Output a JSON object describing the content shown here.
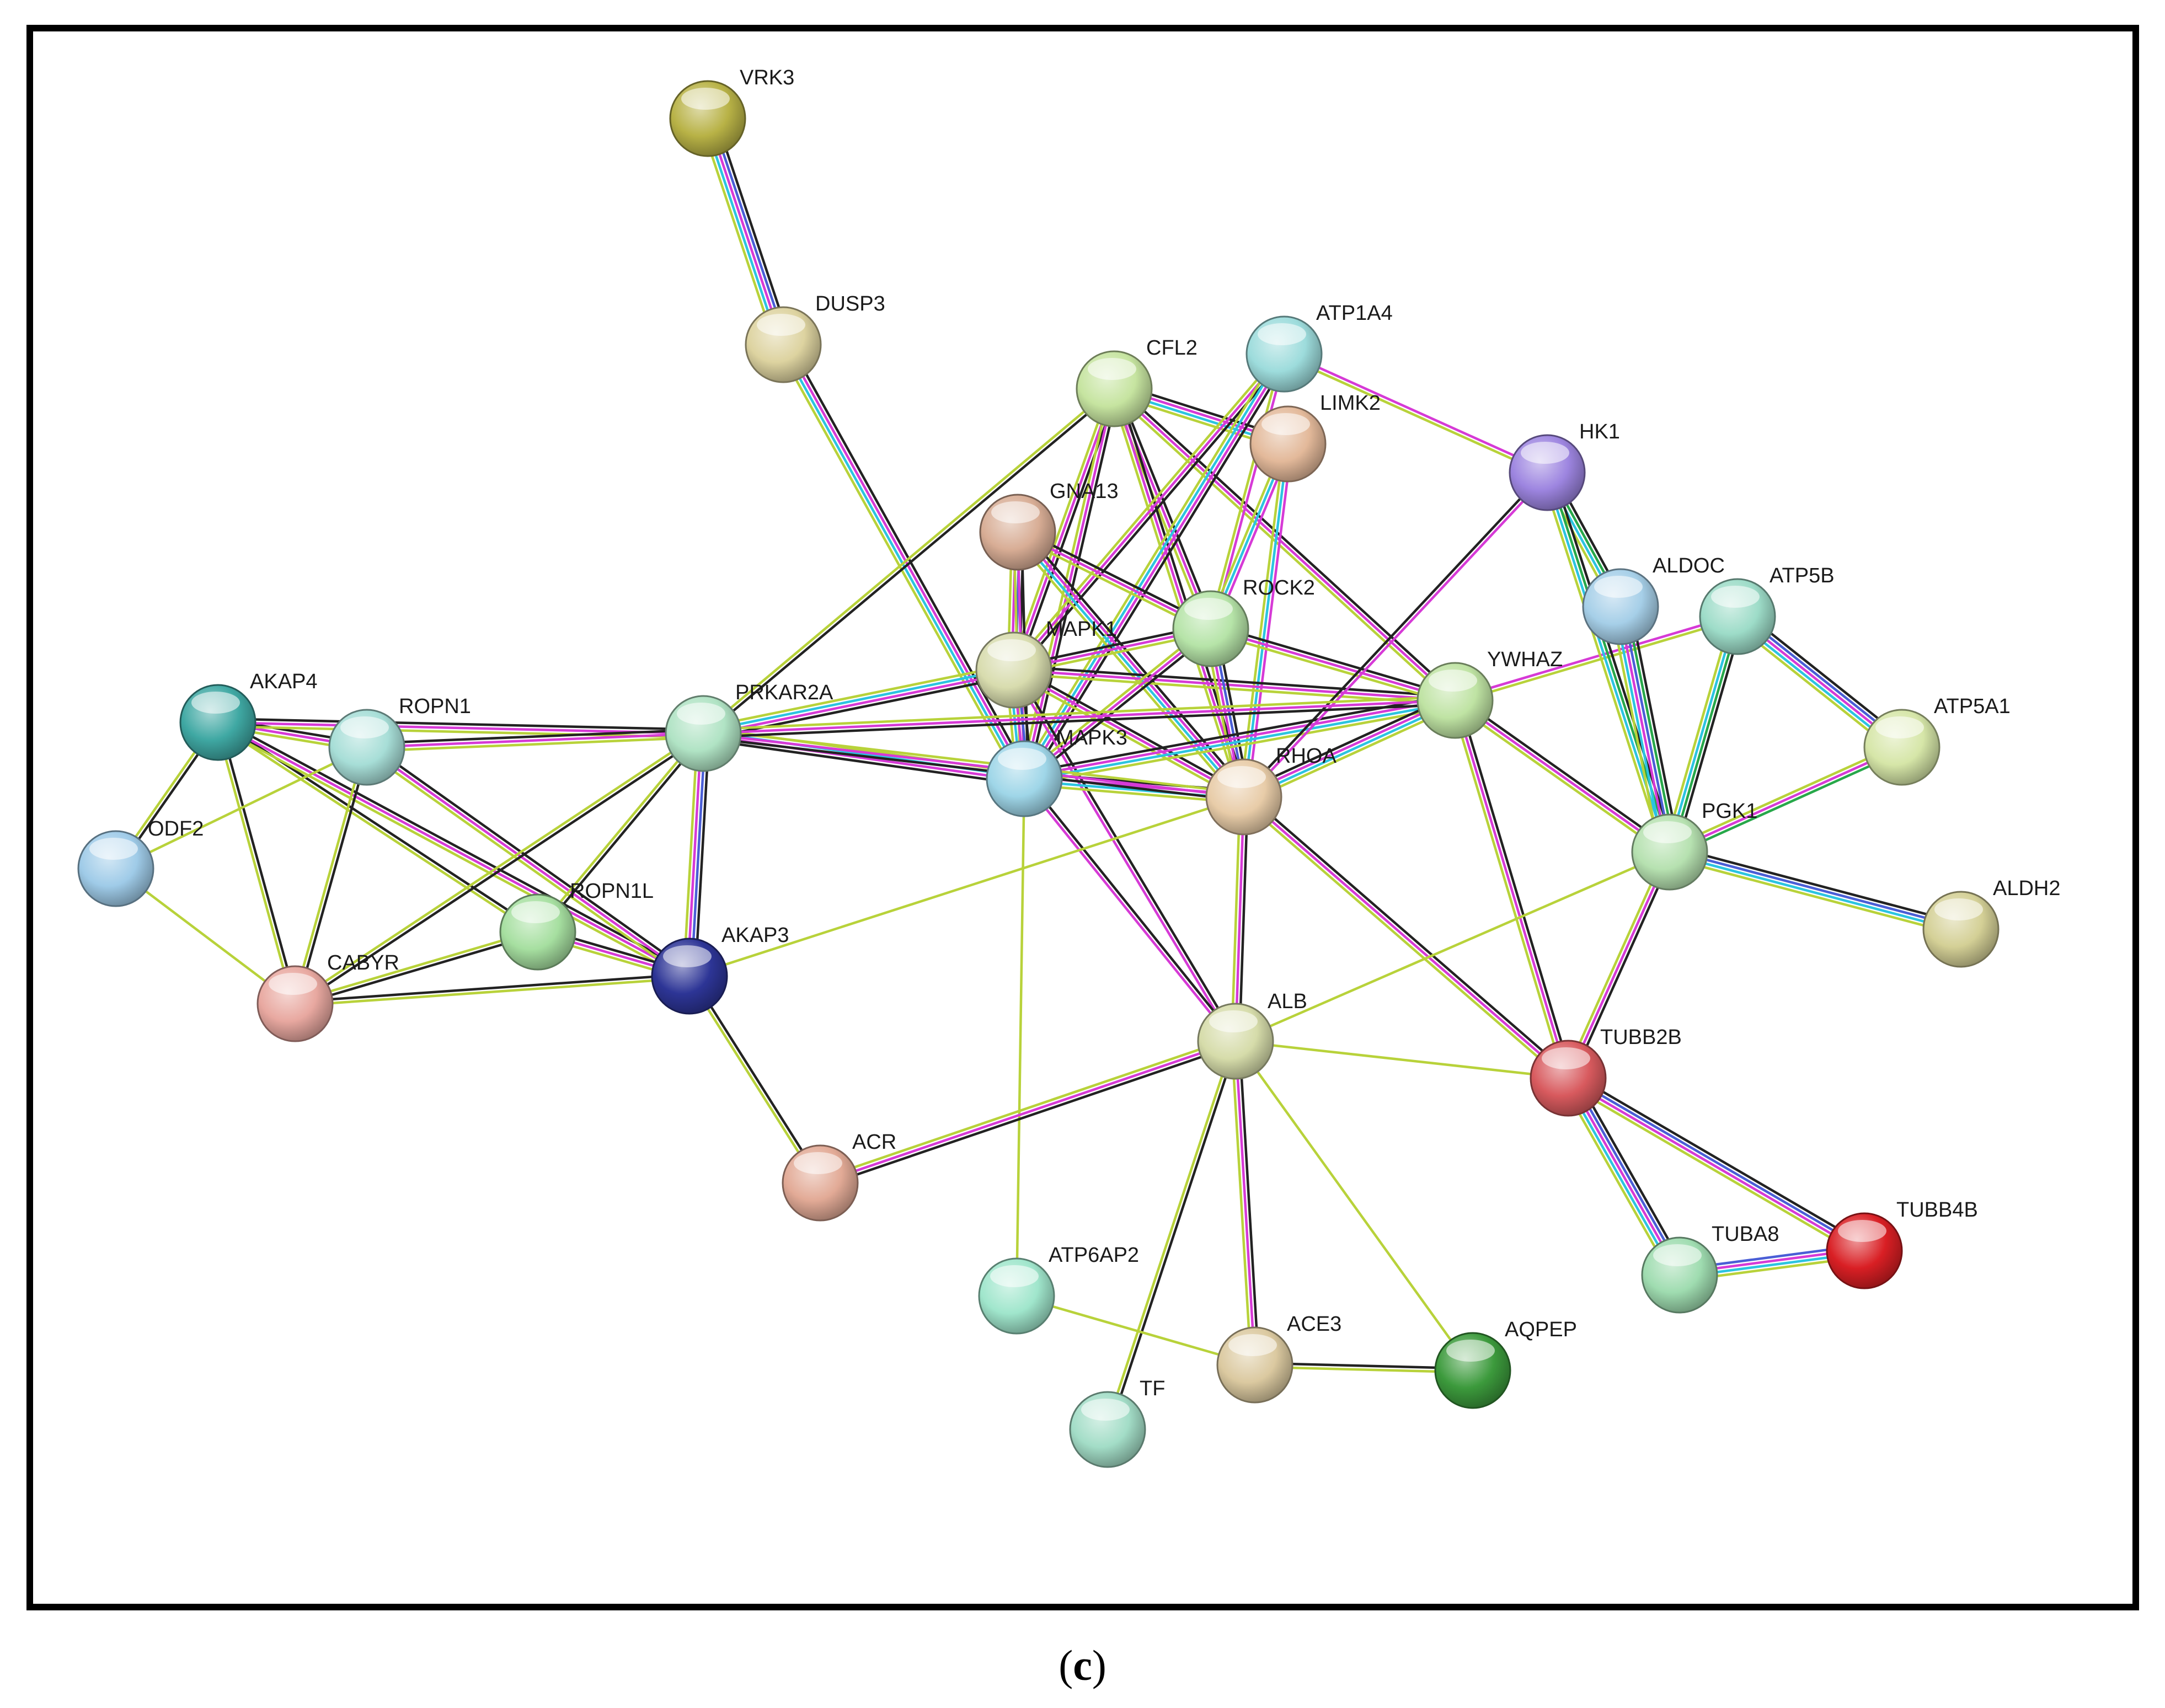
{
  "caption": {
    "open": "(",
    "letter": "c",
    "close": ")"
  },
  "nodes": [
    {
      "id": "VRK3",
      "label": "VRK3",
      "color": "#b8b246"
    },
    {
      "id": "DUSP3",
      "label": "DUSP3",
      "color": "#ddd3a0"
    },
    {
      "id": "ATP1A4",
      "label": "ATP1A4",
      "color": "#9ddcdc"
    },
    {
      "id": "CFL2",
      "label": "CFL2",
      "color": "#c6e4a0"
    },
    {
      "id": "LIMK2",
      "label": "LIMK2",
      "color": "#e3b99a"
    },
    {
      "id": "HK1",
      "label": "HK1",
      "color": "#9d85e0"
    },
    {
      "id": "GNA13",
      "label": "GNA13",
      "color": "#d8ad95"
    },
    {
      "id": "ROCK2",
      "label": "ROCK2",
      "color": "#b6e4a8"
    },
    {
      "id": "MAPK1",
      "label": "MAPK1",
      "color": "#d8dcae"
    },
    {
      "id": "ALDOC",
      "label": "ALDOC",
      "color": "#a6cfe8"
    },
    {
      "id": "ATP5B",
      "label": "ATP5B",
      "color": "#9ddcc8"
    },
    {
      "id": "YWHAZ",
      "label": "YWHAZ",
      "color": "#bfe3a3"
    },
    {
      "id": "ATP5A1",
      "label": "ATP5A1",
      "color": "#d6e6a8"
    },
    {
      "id": "AKAP4",
      "label": "AKAP4",
      "color": "#3fa8a3"
    },
    {
      "id": "ROPN1",
      "label": "ROPN1",
      "color": "#a7ded7"
    },
    {
      "id": "PRKAR2A",
      "label": "PRKAR2A",
      "color": "#b0e3c4"
    },
    {
      "id": "MAPK3",
      "label": "MAPK3",
      "color": "#9fd6e8"
    },
    {
      "id": "RHOA",
      "label": "RHOA",
      "color": "#e8cca8"
    },
    {
      "id": "PGK1",
      "label": "PGK1",
      "color": "#b6e1b0"
    },
    {
      "id": "ODF2",
      "label": "ODF2",
      "color": "#9fcbe8"
    },
    {
      "id": "ALDH2",
      "label": "ALDH2",
      "color": "#d4d096"
    },
    {
      "id": "ROPN1L",
      "label": "ROPN1L",
      "color": "#a6dfa0"
    },
    {
      "id": "AKAP3",
      "label": "AKAP3",
      "color": "#2d3596"
    },
    {
      "id": "CABYR",
      "label": "CABYR",
      "color": "#e8a8a0"
    },
    {
      "id": "ALB",
      "label": "ALB",
      "color": "#d6dcaa"
    },
    {
      "id": "TUBB2B",
      "label": "TUBB2B",
      "color": "#d85a5e"
    },
    {
      "id": "ACR",
      "label": "ACR",
      "color": "#e2aa96"
    },
    {
      "id": "TUBB4B",
      "label": "TUBB4B",
      "color": "#d91f24"
    },
    {
      "id": "TUBA8",
      "label": "TUBA8",
      "color": "#9fdcb0"
    },
    {
      "id": "ATP6AP2",
      "label": "ATP6AP2",
      "color": "#a0e6cc"
    },
    {
      "id": "ACE3",
      "label": "ACE3",
      "color": "#dbc9a0"
    },
    {
      "id": "AQPEP",
      "label": "AQPEP",
      "color": "#3c9a3c"
    },
    {
      "id": "TF",
      "label": "TF",
      "color": "#a3ddc7"
    }
  ],
  "edge_colors": {
    "black": "#222222",
    "magenta": "#d63ad6",
    "cyan": "#2cc4e0",
    "yellow": "#b8d23a",
    "blue": "#4a5ed6",
    "green": "#27a84a"
  },
  "edges": [
    {
      "source": "VRK3",
      "target": "DUSP3",
      "channels": [
        "black",
        "blue",
        "magenta",
        "cyan",
        "yellow"
      ]
    },
    {
      "source": "DUSP3",
      "target": "MAPK3",
      "channels": [
        "black",
        "magenta",
        "cyan",
        "yellow"
      ]
    },
    {
      "source": "CFL2",
      "target": "MAPK1",
      "channels": [
        "black",
        "magenta",
        "yellow"
      ]
    },
    {
      "source": "CFL2",
      "target": "MAPK3",
      "channels": [
        "black",
        "magenta",
        "yellow"
      ]
    },
    {
      "source": "CFL2",
      "target": "ROCK2",
      "channels": [
        "black",
        "magenta",
        "yellow"
      ]
    },
    {
      "source": "CFL2",
      "target": "RHOA",
      "channels": [
        "black",
        "magenta",
        "yellow"
      ]
    },
    {
      "source": "CFL2",
      "target": "LIMK2",
      "channels": [
        "black",
        "magenta",
        "cyan",
        "yellow"
      ]
    },
    {
      "source": "CFL2",
      "target": "YWHAZ",
      "channels": [
        "black",
        "magenta",
        "yellow"
      ]
    },
    {
      "source": "CFL2",
      "target": "PRKAR2A",
      "channels": [
        "black",
        "yellow"
      ]
    },
    {
      "source": "ATP1A4",
      "target": "MAPK1",
      "channels": [
        "black",
        "magenta",
        "yellow"
      ]
    },
    {
      "source": "ATP1A4",
      "target": "MAPK3",
      "channels": [
        "black",
        "magenta",
        "cyan",
        "yellow"
      ]
    },
    {
      "source": "ATP1A4",
      "target": "HK1",
      "channels": [
        "magenta",
        "yellow"
      ]
    },
    {
      "source": "ATP1A4",
      "target": "ROCK2",
      "channels": [
        "magenta",
        "yellow"
      ]
    },
    {
      "source": "LIMK2",
      "target": "ROCK2",
      "channels": [
        "magenta",
        "cyan",
        "yellow"
      ]
    },
    {
      "source": "LIMK2",
      "target": "RHOA",
      "channels": [
        "magenta",
        "cyan",
        "yellow"
      ]
    },
    {
      "source": "GNA13",
      "target": "MAPK1",
      "channels": [
        "black",
        "blue",
        "magenta",
        "yellow"
      ]
    },
    {
      "source": "GNA13",
      "target": "MAPK3",
      "channels": [
        "black",
        "magenta",
        "yellow"
      ]
    },
    {
      "source": "GNA13",
      "target": "ROCK2",
      "channels": [
        "black",
        "magenta",
        "yellow"
      ]
    },
    {
      "source": "GNA13",
      "target": "RHOA",
      "channels": [
        "black",
        "magenta",
        "cyan",
        "yellow"
      ]
    },
    {
      "source": "MAPK1",
      "target": "MAPK3",
      "channels": [
        "black",
        "blue",
        "magenta",
        "cyan",
        "yellow"
      ]
    },
    {
      "source": "MAPK1",
      "target": "ROCK2",
      "channels": [
        "black",
        "magenta",
        "yellow"
      ]
    },
    {
      "source": "MAPK1",
      "target": "RHOA",
      "channels": [
        "black",
        "magenta",
        "yellow"
      ]
    },
    {
      "source": "MAPK1",
      "target": "YWHAZ",
      "channels": [
        "black",
        "magenta",
        "yellow"
      ]
    },
    {
      "source": "MAPK1",
      "target": "PRKAR2A",
      "channels": [
        "black",
        "magenta",
        "cyan",
        "yellow"
      ]
    },
    {
      "source": "MAPK1",
      "target": "ALB",
      "channels": [
        "black",
        "magenta"
      ]
    },
    {
      "source": "ROCK2",
      "target": "RHOA",
      "channels": [
        "black",
        "blue",
        "magenta",
        "yellow"
      ]
    },
    {
      "source": "ROCK2",
      "target": "MAPK3",
      "channels": [
        "black",
        "magenta",
        "yellow"
      ]
    },
    {
      "source": "ROCK2",
      "target": "YWHAZ",
      "channels": [
        "black",
        "magenta",
        "yellow"
      ]
    },
    {
      "source": "MAPK3",
      "target": "RHOA",
      "channels": [
        "black",
        "magenta",
        "cyan",
        "yellow"
      ]
    },
    {
      "source": "MAPK3",
      "target": "YWHAZ",
      "channels": [
        "black",
        "magenta",
        "cyan",
        "yellow"
      ]
    },
    {
      "source": "MAPK3",
      "target": "PRKAR2A",
      "channels": [
        "black",
        "magenta",
        "cyan",
        "yellow"
      ]
    },
    {
      "source": "MAPK3",
      "target": "ALB",
      "channels": [
        "black",
        "magenta"
      ]
    },
    {
      "source": "MAPK3",
      "target": "ATP6AP2",
      "channels": [
        "yellow"
      ]
    },
    {
      "source": "RHOA",
      "target": "YWHAZ",
      "channels": [
        "black",
        "magenta",
        "cyan",
        "yellow"
      ]
    },
    {
      "source": "RHOA",
      "target": "PRKAR2A",
      "channels": [
        "black",
        "magenta",
        "yellow"
      ]
    },
    {
      "source": "RHOA",
      "target": "ALB",
      "channels": [
        "black",
        "magenta",
        "yellow"
      ]
    },
    {
      "source": "RHOA",
      "target": "TUBB2B",
      "channels": [
        "black",
        "magenta",
        "yellow"
      ]
    },
    {
      "source": "RHOA",
      "target": "HK1",
      "channels": [
        "black",
        "magenta"
      ]
    },
    {
      "source": "RHOA",
      "target": "AKAP3",
      "channels": [
        "yellow"
      ]
    },
    {
      "source": "YWHAZ",
      "target": "PRKAR2A",
      "channels": [
        "black",
        "magenta",
        "yellow"
      ]
    },
    {
      "source": "YWHAZ",
      "target": "ATP5B",
      "channels": [
        "magenta",
        "yellow"
      ]
    },
    {
      "source": "YWHAZ",
      "target": "PGK1",
      "channels": [
        "black",
        "magenta",
        "yellow"
      ]
    },
    {
      "source": "YWHAZ",
      "target": "TUBB2B",
      "channels": [
        "black",
        "magenta",
        "yellow"
      ]
    },
    {
      "source": "HK1",
      "target": "ALDOC",
      "channels": [
        "black",
        "green",
        "cyan",
        "yellow"
      ]
    },
    {
      "source": "HK1",
      "target": "PGK1",
      "channels": [
        "black",
        "green",
        "cyan",
        "yellow"
      ]
    },
    {
      "source": "ALDOC",
      "target": "PGK1",
      "channels": [
        "black",
        "green",
        "blue",
        "magenta",
        "cyan",
        "yellow"
      ]
    },
    {
      "source": "ATP5B",
      "target": "PGK1",
      "channels": [
        "black",
        "green",
        "cyan",
        "yellow"
      ]
    },
    {
      "source": "ATP5B",
      "target": "ATP5A1",
      "channels": [
        "black",
        "blue",
        "magenta",
        "cyan",
        "yellow"
      ]
    },
    {
      "source": "ATP5A1",
      "target": "PGK1",
      "channels": [
        "green",
        "magenta",
        "yellow"
      ]
    },
    {
      "source": "PGK1",
      "target": "ALDH2",
      "channels": [
        "black",
        "blue",
        "cyan",
        "yellow"
      ]
    },
    {
      "source": "PGK1",
      "target": "TUBB2B",
      "channels": [
        "black",
        "magenta",
        "yellow"
      ]
    },
    {
      "source": "PGK1",
      "target": "ALB",
      "channels": [
        "yellow"
      ]
    },
    {
      "source": "TUBB2B",
      "target": "TUBA8",
      "channels": [
        "black",
        "blue",
        "magenta",
        "cyan",
        "yellow"
      ]
    },
    {
      "source": "TUBB2B",
      "target": "TUBB4B",
      "channels": [
        "black",
        "blue",
        "magenta",
        "yellow"
      ]
    },
    {
      "source": "TUBA8",
      "target": "TUBB4B",
      "channels": [
        "blue",
        "magenta",
        "cyan",
        "yellow"
      ]
    },
    {
      "source": "TUBB2B",
      "target": "ALB",
      "channels": [
        "yellow"
      ]
    },
    {
      "source": "AKAP4",
      "target": "ROPN1",
      "channels": [
        "black",
        "magenta",
        "yellow"
      ]
    },
    {
      "source": "AKAP4",
      "target": "ODF2",
      "channels": [
        "black",
        "yellow"
      ]
    },
    {
      "source": "AKAP4",
      "target": "CABYR",
      "channels": [
        "black",
        "yellow"
      ]
    },
    {
      "source": "AKAP4",
      "target": "ROPN1L",
      "channels": [
        "black",
        "yellow"
      ]
    },
    {
      "source": "AKAP4",
      "target": "AKAP3",
      "channels": [
        "black",
        "magenta",
        "yellow"
      ]
    },
    {
      "source": "AKAP4",
      "target": "PRKAR2A",
      "channels": [
        "black",
        "magenta",
        "yellow"
      ]
    },
    {
      "source": "ROPN1",
      "target": "PRKAR2A",
      "channels": [
        "black",
        "magenta",
        "yellow"
      ]
    },
    {
      "source": "ROPN1",
      "target": "AKAP3",
      "channels": [
        "black",
        "magenta",
        "yellow"
      ]
    },
    {
      "source": "ROPN1",
      "target": "CABYR",
      "channels": [
        "black",
        "yellow"
      ]
    },
    {
      "source": "ROPN1",
      "target": "ODF2",
      "channels": [
        "yellow"
      ]
    },
    {
      "source": "ODF2",
      "target": "CABYR",
      "channels": [
        "yellow"
      ]
    },
    {
      "source": "PRKAR2A",
      "target": "AKAP3",
      "channels": [
        "black",
        "blue",
        "magenta",
        "yellow"
      ]
    },
    {
      "source": "PRKAR2A",
      "target": "ROPN1L",
      "channels": [
        "black",
        "yellow"
      ]
    },
    {
      "source": "PRKAR2A",
      "target": "CABYR",
      "channels": [
        "black",
        "yellow"
      ]
    },
    {
      "source": "ROPN1L",
      "target": "AKAP3",
      "channels": [
        "black",
        "magenta",
        "yellow"
      ]
    },
    {
      "source": "ROPN1L",
      "target": "CABYR",
      "channels": [
        "black",
        "yellow"
      ]
    },
    {
      "source": "CABYR",
      "target": "AKAP3",
      "channels": [
        "black",
        "yellow"
      ]
    },
    {
      "source": "AKAP3",
      "target": "ACR",
      "channels": [
        "black",
        "yellow"
      ]
    },
    {
      "source": "ALB",
      "target": "ACR",
      "channels": [
        "black",
        "magenta",
        "yellow"
      ]
    },
    {
      "source": "ALB",
      "target": "TF",
      "channels": [
        "black",
        "yellow"
      ]
    },
    {
      "source": "ALB",
      "target": "ACE3",
      "channels": [
        "black",
        "magenta",
        "yellow"
      ]
    },
    {
      "source": "ALB",
      "target": "AQPEP",
      "channels": [
        "yellow"
      ]
    },
    {
      "source": "ACE3",
      "target": "AQPEP",
      "channels": [
        "black",
        "yellow"
      ]
    },
    {
      "source": "ATP6AP2",
      "target": "ACE3",
      "channels": [
        "yellow"
      ]
    }
  ]
}
